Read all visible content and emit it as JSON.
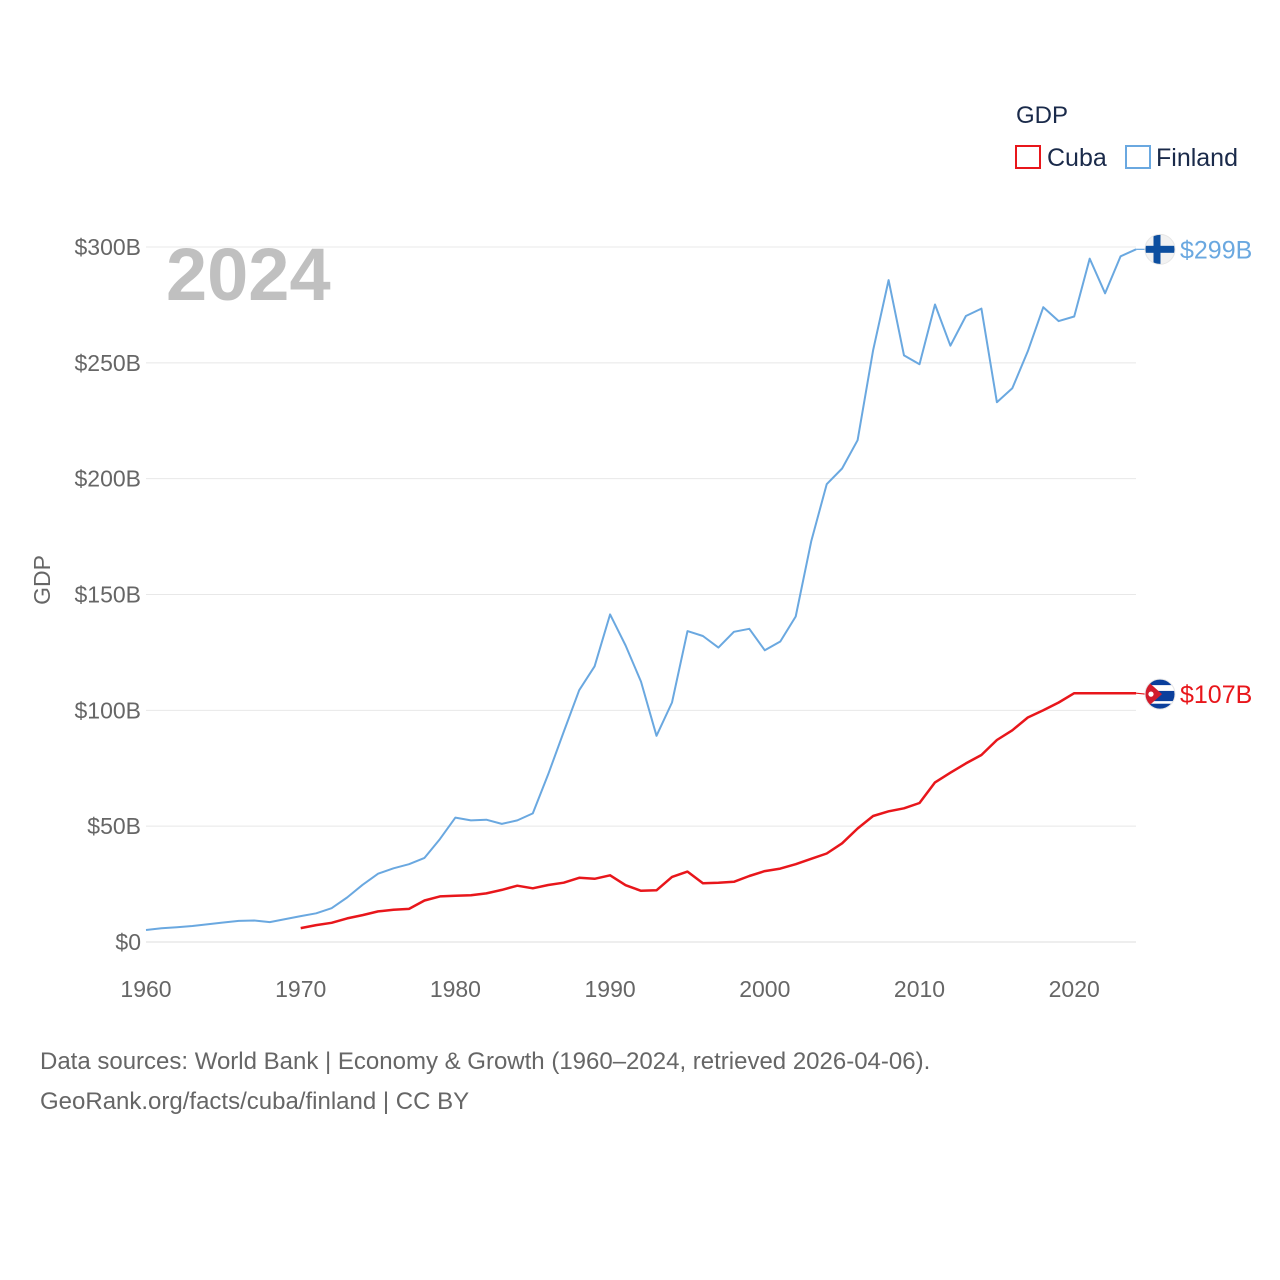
{
  "chart_data": {
    "type": "line",
    "year_label": "2024",
    "ylabel": "GDP",
    "ylim": [
      0,
      300
    ],
    "xlim": [
      1960,
      2024
    ],
    "y_ticks": [
      {
        "value": 0,
        "label": "$0"
      },
      {
        "value": 50,
        "label": "$50B"
      },
      {
        "value": 100,
        "label": "$100B"
      },
      {
        "value": 150,
        "label": "$150B"
      },
      {
        "value": 200,
        "label": "$200B"
      },
      {
        "value": 250,
        "label": "$250B"
      },
      {
        "value": 300,
        "label": "$300B"
      }
    ],
    "x_ticks": [
      {
        "value": 1960,
        "label": "1960"
      },
      {
        "value": 1970,
        "label": "1970"
      },
      {
        "value": 1980,
        "label": "1980"
      },
      {
        "value": 1990,
        "label": "1990"
      },
      {
        "value": 2000,
        "label": "2000"
      },
      {
        "value": 2010,
        "label": "2010"
      },
      {
        "value": 2020,
        "label": "2020"
      }
    ],
    "legend": {
      "title": "GDP",
      "position": "top-right"
    },
    "series": [
      {
        "name": "Cuba",
        "color": "#e8161b",
        "end_label": "$107B",
        "end_value": 107,
        "flag": "cuba-flag",
        "points": [
          [
            1970,
            6
          ],
          [
            1971,
            7.3
          ],
          [
            1972,
            8.3
          ],
          [
            1973,
            10.2
          ],
          [
            1974,
            11.6
          ],
          [
            1975,
            13.2
          ],
          [
            1976,
            13.9
          ],
          [
            1977,
            14.3
          ],
          [
            1978,
            17.9
          ],
          [
            1979,
            19.7
          ],
          [
            1980,
            20.0
          ],
          [
            1981,
            20.2
          ],
          [
            1982,
            21.0
          ],
          [
            1983,
            22.5
          ],
          [
            1984,
            24.3
          ],
          [
            1985,
            23.2
          ],
          [
            1986,
            24.6
          ],
          [
            1987,
            25.6
          ],
          [
            1988,
            27.7
          ],
          [
            1989,
            27.3
          ],
          [
            1990,
            28.8
          ],
          [
            1991,
            24.5
          ],
          [
            1992,
            22.1
          ],
          [
            1993,
            22.3
          ],
          [
            1994,
            28.1
          ],
          [
            1995,
            30.4
          ],
          [
            1996,
            25.4
          ],
          [
            1997,
            25.6
          ],
          [
            1998,
            26.0
          ],
          [
            1999,
            28.5
          ],
          [
            2000,
            30.6
          ],
          [
            2001,
            31.7
          ],
          [
            2002,
            33.6
          ],
          [
            2003,
            35.9
          ],
          [
            2004,
            38.2
          ],
          [
            2005,
            42.6
          ],
          [
            2006,
            49.0
          ],
          [
            2007,
            54.4
          ],
          [
            2008,
            56.4
          ],
          [
            2009,
            57.7
          ],
          [
            2010,
            60.0
          ],
          [
            2011,
            68.9
          ],
          [
            2012,
            73.1
          ],
          [
            2013,
            77.1
          ],
          [
            2014,
            80.7
          ],
          [
            2015,
            87.2
          ],
          [
            2016,
            91.4
          ],
          [
            2017,
            96.9
          ],
          [
            2018,
            100.0
          ],
          [
            2019,
            103.4
          ],
          [
            2020,
            107.4
          ],
          [
            2021,
            107.4
          ],
          [
            2022,
            107.4
          ],
          [
            2023,
            107.4
          ],
          [
            2024,
            107.4
          ]
        ]
      },
      {
        "name": "Finland",
        "color": "#6aa8e0",
        "end_label": "$299B",
        "end_value": 299,
        "flag": "finland-flag",
        "points": [
          [
            1960,
            5.2
          ],
          [
            1961,
            5.9
          ],
          [
            1962,
            6.4
          ],
          [
            1963,
            6.9
          ],
          [
            1964,
            7.7
          ],
          [
            1965,
            8.4
          ],
          [
            1966,
            9.1
          ],
          [
            1967,
            9.3
          ],
          [
            1968,
            8.6
          ],
          [
            1969,
            9.9
          ],
          [
            1970,
            11.2
          ],
          [
            1971,
            12.4
          ],
          [
            1972,
            14.6
          ],
          [
            1973,
            19.2
          ],
          [
            1974,
            24.7
          ],
          [
            1975,
            29.5
          ],
          [
            1976,
            31.8
          ],
          [
            1977,
            33.6
          ],
          [
            1978,
            36.3
          ],
          [
            1979,
            44.4
          ],
          [
            1980,
            53.7
          ],
          [
            1981,
            52.5
          ],
          [
            1982,
            52.8
          ],
          [
            1983,
            51.0
          ],
          [
            1984,
            52.5
          ],
          [
            1985,
            55.5
          ],
          [
            1986,
            72.4
          ],
          [
            1987,
            90.7
          ],
          [
            1988,
            108.7
          ],
          [
            1989,
            119.0
          ],
          [
            1990,
            141.4
          ],
          [
            1991,
            128.0
          ],
          [
            1992,
            112.4
          ],
          [
            1993,
            89.0
          ],
          [
            1994,
            103.4
          ],
          [
            1995,
            134.2
          ],
          [
            1996,
            132.1
          ],
          [
            1997,
            127.1
          ],
          [
            1998,
            133.9
          ],
          [
            1999,
            135.2
          ],
          [
            2000,
            125.9
          ],
          [
            2001,
            129.7
          ],
          [
            2002,
            140.5
          ],
          [
            2003,
            172.9
          ],
          [
            2004,
            197.6
          ],
          [
            2005,
            204.4
          ],
          [
            2006,
            216.6
          ],
          [
            2007,
            255.4
          ],
          [
            2008,
            285.7
          ],
          [
            2009,
            253.2
          ],
          [
            2010,
            249.4
          ],
          [
            2011,
            275.2
          ],
          [
            2012,
            257.4
          ],
          [
            2013,
            270.2
          ],
          [
            2014,
            273.4
          ],
          [
            2015,
            233.0
          ],
          [
            2016,
            239.0
          ],
          [
            2017,
            255.0
          ],
          [
            2018,
            274.0
          ],
          [
            2019,
            268.0
          ],
          [
            2020,
            270.0
          ],
          [
            2021,
            295.0
          ],
          [
            2022,
            280.0
          ],
          [
            2023,
            296.0
          ],
          [
            2024,
            299.0
          ]
        ]
      }
    ]
  },
  "footer": {
    "line1": "Data sources: World Bank | Economy & Growth (1960–2024, retrieved 2026-04-06).",
    "line2": "GeoRank.org/facts/cuba/finland | CC BY"
  }
}
